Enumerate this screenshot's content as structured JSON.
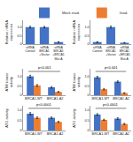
{
  "chart_data": [
    {
      "type": "bar",
      "ylabel": "Relative mRNA\nexpression",
      "categories": [
        "siRNA\nControl",
        "siRNA\nBRCA1\n+Vector",
        "siRNA\nBRCA1\n+BRCA1\nMut-A"
      ],
      "values": [
        1.0,
        1.0,
        0.12
      ],
      "errors": [
        0.05,
        0.04,
        0.02
      ],
      "color": "#4472c4",
      "ylim": [
        0,
        1.4
      ],
      "yticks": [
        0,
        0.5,
        {
          "value": 1.0,
          "label": "1.0"
        }
      ],
      "grid": false
    },
    {
      "type": "bar",
      "ylabel": "Relative mRNA\nexpression",
      "categories": [
        "siRNA\nControl",
        "siRNA\nBRCA1\n+Vector",
        "siRNA\nBRCA1\n+BRCA1\nMut-A"
      ],
      "values": [
        0.12,
        1.0,
        0.08
      ],
      "errors": [
        0.02,
        0.06,
        0.01
      ],
      "color": "#4472c4",
      "ylim": [
        0,
        1.4
      ],
      "yticks": [
        0,
        0.5,
        {
          "value": 1.0,
          "label": "1.0"
        }
      ],
      "grid": false
    },
    {
      "type": "bar",
      "ylabel": "ATM kinase\nactivity",
      "annotation": "p<0.001",
      "categories": [
        "BRCA1-WT",
        "BRCA1-A2"
      ],
      "series": [
        {
          "name": "Mock irrad.",
          "color": "#4472c4",
          "values": [
            1.0,
            0.42
          ],
          "errors": [
            0.06,
            0.04
          ]
        },
        {
          "name": "Irrad.",
          "color": "#ed7d31",
          "values": [
            0.52,
            0.18
          ],
          "errors": [
            0.05,
            0.02
          ]
        }
      ],
      "ylim": [
        0,
        1.4
      ],
      "yticks": [
        0,
        0.5,
        {
          "value": 1.0,
          "label": "1.0"
        }
      ],
      "grid": false,
      "legend": "upper right"
    },
    {
      "type": "bar",
      "ylabel": "ATM kinase\nactivity",
      "annotation": "p<0.001",
      "categories": [
        "BRCA1-WT",
        "BRCA1-A2"
      ],
      "series": [
        {
          "color": "#4472c4",
          "values": [
            0.95,
            0.72
          ],
          "errors": [
            0.05,
            0.04
          ]
        },
        {
          "color": "#ed7d31",
          "values": [
            0.32,
            0.12
          ],
          "errors": [
            0.04,
            0.02
          ]
        }
      ],
      "ylim": [
        0,
        1.4
      ],
      "yticks": [
        0,
        0.5,
        {
          "value": 1.0,
          "label": "1.0"
        }
      ],
      "grid": false
    },
    {
      "type": "bar",
      "ylabel": "ATG activity",
      "annotation": "p<0.0001",
      "categories": [
        "BRCA1-WT",
        "BRCA1-A2"
      ],
      "series": [
        {
          "color": "#4472c4",
          "values": [
            0.82,
            0.62
          ],
          "errors": [
            0.05,
            0.04
          ]
        },
        {
          "color": "#ed7d31",
          "values": [
            0.62,
            0.42
          ],
          "errors": [
            0.04,
            0.03
          ]
        }
      ],
      "ylim": [
        0,
        1.2
      ],
      "yticks": [
        0,
        0.5,
        {
          "value": 1.0,
          "label": "1.0"
        }
      ],
      "grid": false
    },
    {
      "type": "bar",
      "ylabel": "ATG activity",
      "annotation": "p<0.0001",
      "categories": [
        "BRCA1-WT",
        "BRCA1-A2"
      ],
      "series": [
        {
          "color": "#4472c4",
          "values": [
            0.78,
            0.58
          ],
          "errors": [
            0.04,
            0.04
          ]
        },
        {
          "color": "#ed7d31",
          "values": [
            0.52,
            0.32
          ],
          "errors": [
            0.03,
            0.03
          ]
        }
      ],
      "ylim": [
        0,
        1.2
      ],
      "yticks": [
        0,
        0.5,
        {
          "value": 1.0,
          "label": "1.0"
        }
      ],
      "grid": false
    }
  ]
}
